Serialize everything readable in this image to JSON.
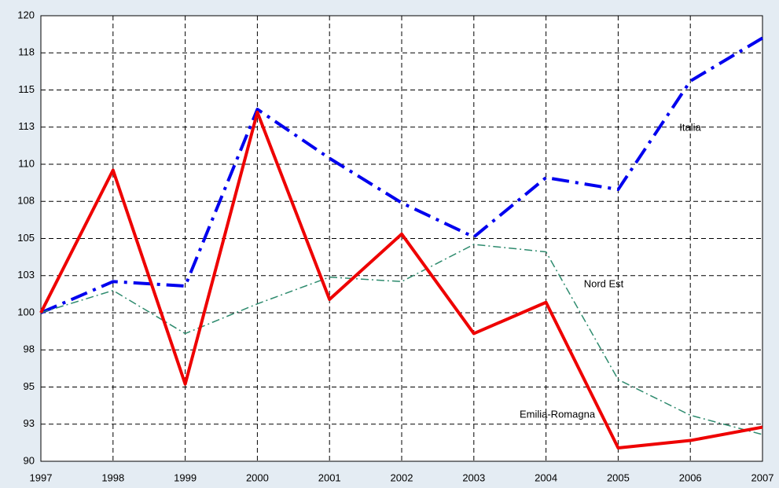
{
  "chart_data": {
    "type": "line",
    "x": [
      1997,
      1998,
      1999,
      2000,
      2001,
      2002,
      2003,
      2004,
      2005,
      2006,
      2007
    ],
    "xlim": [
      1997,
      2007
    ],
    "xticks": [
      1997,
      1998,
      1999,
      2000,
      2001,
      2002,
      2003,
      2004,
      2005,
      2006,
      2007
    ],
    "ylim": [
      90,
      120
    ],
    "yticks": [
      90,
      {
        "value": 92.5,
        "label": "93"
      },
      95,
      {
        "value": 97.5,
        "label": "98"
      },
      100,
      {
        "value": 102.5,
        "label": "103"
      },
      105,
      {
        "value": 107.5,
        "label": "108"
      },
      110,
      {
        "value": 112.5,
        "label": "113"
      },
      115,
      {
        "value": 117.5,
        "label": "118"
      },
      120
    ],
    "grid": true,
    "series": [
      {
        "name": "Italia",
        "color": "#0000ee",
        "values": [
          100,
          102.1,
          101.8,
          113.7,
          110.4,
          107.4,
          105.1,
          109.1,
          108.3,
          115.6,
          118.5
        ]
      },
      {
        "name": "Nord Est",
        "color": "#2e8b6e",
        "values": [
          100,
          101.5,
          98.6,
          100.6,
          102.4,
          102.1,
          104.6,
          104.1,
          95.5,
          93.1,
          91.8
        ]
      },
      {
        "name": "Emilia-Romagna",
        "color": "#ee0000",
        "values": [
          100,
          109.6,
          95.2,
          113.5,
          100.9,
          105.3,
          98.6,
          100.7,
          90.9,
          91.4,
          92.3
        ]
      }
    ]
  }
}
